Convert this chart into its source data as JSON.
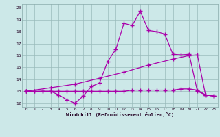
{
  "xlabel": "Windchill (Refroidissement éolien,°C)",
  "bg_color": "#cce8e8",
  "line_color": "#aa00aa",
  "xlim": [
    -0.5,
    23.5
  ],
  "ylim": [
    11.7,
    20.3
  ],
  "xticks": [
    0,
    1,
    2,
    3,
    4,
    5,
    6,
    7,
    8,
    9,
    10,
    11,
    12,
    13,
    14,
    15,
    16,
    17,
    18,
    19,
    20,
    21,
    22,
    23
  ],
  "yticks": [
    12,
    13,
    14,
    15,
    16,
    17,
    18,
    19,
    20
  ],
  "series1": [
    [
      0,
      13.0
    ],
    [
      1,
      13.0
    ],
    [
      2,
      13.0
    ],
    [
      3,
      13.0
    ],
    [
      4,
      12.7
    ],
    [
      5,
      12.3
    ],
    [
      6,
      12.0
    ],
    [
      7,
      12.6
    ],
    [
      8,
      13.4
    ],
    [
      9,
      13.7
    ],
    [
      10,
      15.5
    ],
    [
      11,
      16.5
    ],
    [
      12,
      18.7
    ],
    [
      13,
      18.5
    ],
    [
      14,
      19.7
    ],
    [
      15,
      18.1
    ],
    [
      16,
      18.0
    ],
    [
      17,
      17.8
    ],
    [
      18,
      16.1
    ],
    [
      19,
      16.05
    ],
    [
      20,
      16.1
    ],
    [
      21,
      13.0
    ],
    [
      22,
      12.7
    ],
    [
      23,
      12.6
    ]
  ],
  "series2": [
    [
      0,
      13.0
    ],
    [
      1,
      13.0
    ],
    [
      2,
      13.0
    ],
    [
      3,
      13.0
    ],
    [
      4,
      13.0
    ],
    [
      5,
      13.0
    ],
    [
      6,
      13.0
    ],
    [
      7,
      13.0
    ],
    [
      8,
      13.0
    ],
    [
      9,
      13.0
    ],
    [
      10,
      13.0
    ],
    [
      11,
      13.0
    ],
    [
      12,
      13.0
    ],
    [
      13,
      13.1
    ],
    [
      14,
      13.1
    ],
    [
      15,
      13.1
    ],
    [
      16,
      13.1
    ],
    [
      17,
      13.1
    ],
    [
      18,
      13.1
    ],
    [
      19,
      13.2
    ],
    [
      20,
      13.2
    ],
    [
      21,
      13.1
    ],
    [
      22,
      12.7
    ],
    [
      23,
      12.6
    ]
  ],
  "series3": [
    [
      0,
      13.0
    ],
    [
      3,
      13.3
    ],
    [
      6,
      13.6
    ],
    [
      9,
      14.1
    ],
    [
      12,
      14.6
    ],
    [
      15,
      15.2
    ],
    [
      18,
      15.7
    ],
    [
      20,
      16.0
    ],
    [
      21,
      16.05
    ],
    [
      22,
      12.7
    ],
    [
      23,
      12.6
    ]
  ]
}
